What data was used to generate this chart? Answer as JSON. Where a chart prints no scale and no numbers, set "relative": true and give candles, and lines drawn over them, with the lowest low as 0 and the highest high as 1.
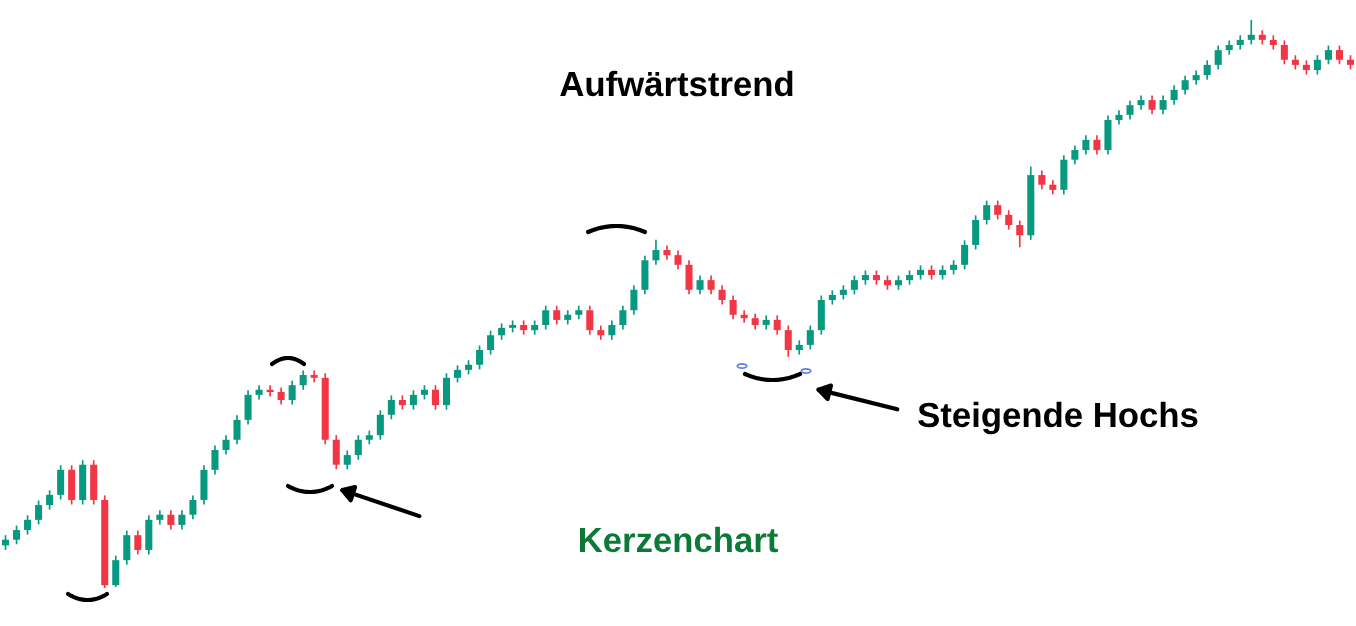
{
  "chart_data": {
    "type": "candlestick",
    "relative": true,
    "title": "Aufwärtstrend",
    "annotations": [
      "Steigende Hochs",
      "Kerzenchart"
    ],
    "categories": [
      null,
      null,
      null,
      null,
      null,
      null,
      null,
      null,
      null,
      null,
      null,
      null,
      null,
      null,
      null,
      null,
      null,
      null,
      null,
      null,
      null,
      null,
      null,
      null,
      null,
      null,
      null,
      null,
      null,
      null,
      null,
      null,
      null,
      null,
      null,
      null,
      null,
      null,
      null,
      null,
      null,
      null,
      null,
      null,
      null,
      null,
      null,
      null,
      null,
      null,
      null,
      null,
      null,
      null,
      null,
      null,
      null,
      null,
      null,
      null,
      null,
      null,
      null,
      null,
      null,
      null,
      null,
      null,
      null,
      null,
      null,
      null,
      null,
      null,
      null,
      null,
      null,
      null,
      null,
      null,
      null,
      null,
      null,
      null,
      null,
      null,
      null,
      null,
      null,
      null,
      null,
      null,
      null,
      null,
      null,
      null,
      null,
      null,
      null,
      null,
      null,
      null,
      null,
      null,
      null,
      null,
      null,
      null,
      null,
      null,
      null,
      null,
      null,
      null,
      null,
      null,
      null,
      null,
      null,
      null,
      null,
      null,
      null
    ],
    "ohlc": [
      [
        0.075,
        0.093,
        0.067,
        0.085
      ],
      [
        0.085,
        0.11,
        0.077,
        0.102
      ],
      [
        0.102,
        0.128,
        0.094,
        0.12
      ],
      [
        0.12,
        0.154,
        0.112,
        0.146
      ],
      [
        0.146,
        0.172,
        0.138,
        0.164
      ],
      [
        0.164,
        0.216,
        0.156,
        0.208
      ],
      [
        0.208,
        0.216,
        0.147,
        0.155
      ],
      [
        0.155,
        0.225,
        0.147,
        0.217
      ],
      [
        0.217,
        0.225,
        0.147,
        0.155
      ],
      [
        0.155,
        0.163,
        0,
        0.005
      ],
      [
        0.005,
        0.057,
        0.002,
        0.049
      ],
      [
        0.049,
        0.101,
        0.041,
        0.093
      ],
      [
        0.093,
        0.101,
        0.059,
        0.067
      ],
      [
        0.067,
        0.128,
        0.059,
        0.12
      ],
      [
        0.12,
        0.137,
        0.112,
        0.129
      ],
      [
        0.129,
        0.137,
        0.103,
        0.111
      ],
      [
        0.111,
        0.137,
        0.103,
        0.129
      ],
      [
        0.129,
        0.163,
        0.121,
        0.155
      ],
      [
        0.155,
        0.216,
        0.147,
        0.208
      ],
      [
        0.208,
        0.251,
        0.2,
        0.243
      ],
      [
        0.243,
        0.269,
        0.235,
        0.261
      ],
      [
        0.261,
        0.304,
        0.253,
        0.296
      ],
      [
        0.296,
        0.348,
        0.288,
        0.34
      ],
      [
        0.34,
        0.357,
        0.332,
        0.349
      ],
      [
        0.349,
        0.357,
        0.337,
        0.345
      ],
      [
        0.345,
        0.353,
        0.323,
        0.331
      ],
      [
        0.331,
        0.365,
        0.323,
        0.357
      ],
      [
        0.357,
        0.383,
        0.349,
        0.375
      ],
      [
        0.375,
        0.383,
        0.362,
        0.37
      ],
      [
        0.37,
        0.378,
        0.253,
        0.261
      ],
      [
        0.261,
        0.269,
        0.209,
        0.217
      ],
      [
        0.217,
        0.242,
        0.209,
        0.234
      ],
      [
        0.234,
        0.269,
        0.226,
        0.261
      ],
      [
        0.261,
        0.277,
        0.253,
        0.269
      ],
      [
        0.269,
        0.313,
        0.261,
        0.305
      ],
      [
        0.305,
        0.339,
        0.297,
        0.331
      ],
      [
        0.331,
        0.339,
        0.314,
        0.322
      ],
      [
        0.322,
        0.348,
        0.314,
        0.34
      ],
      [
        0.34,
        0.357,
        0.332,
        0.349
      ],
      [
        0.349,
        0.357,
        0.314,
        0.322
      ],
      [
        0.322,
        0.378,
        0.314,
        0.37
      ],
      [
        0.37,
        0.392,
        0.362,
        0.384
      ],
      [
        0.384,
        0.401,
        0.376,
        0.393
      ],
      [
        0.393,
        0.427,
        0.385,
        0.419
      ],
      [
        0.419,
        0.453,
        0.411,
        0.445
      ],
      [
        0.445,
        0.466,
        0.437,
        0.458
      ],
      [
        0.458,
        0.471,
        0.45,
        0.463
      ],
      [
        0.463,
        0.471,
        0.446,
        0.454
      ],
      [
        0.454,
        0.471,
        0.446,
        0.463
      ],
      [
        0.463,
        0.497,
        0.455,
        0.489
      ],
      [
        0.489,
        0.497,
        0.464,
        0.472
      ],
      [
        0.472,
        0.489,
        0.464,
        0.481
      ],
      [
        0.481,
        0.497,
        0.473,
        0.489
      ],
      [
        0.489,
        0.497,
        0.446,
        0.454
      ],
      [
        0.454,
        0.462,
        0.437,
        0.445
      ],
      [
        0.445,
        0.471,
        0.437,
        0.463
      ],
      [
        0.463,
        0.497,
        0.455,
        0.489
      ],
      [
        0.489,
        0.533,
        0.481,
        0.525
      ],
      [
        0.525,
        0.585,
        0.517,
        0.577
      ],
      [
        0.577,
        0.613,
        0.569,
        0.595
      ],
      [
        0.595,
        0.603,
        0.578,
        0.586
      ],
      [
        0.586,
        0.594,
        0.561,
        0.569
      ],
      [
        0.569,
        0.577,
        0.517,
        0.525
      ],
      [
        0.525,
        0.55,
        0.517,
        0.542
      ],
      [
        0.542,
        0.55,
        0.517,
        0.525
      ],
      [
        0.525,
        0.533,
        0.499,
        0.507
      ],
      [
        0.507,
        0.515,
        0.473,
        0.481
      ],
      [
        0.481,
        0.489,
        0.467,
        0.475
      ],
      [
        0.475,
        0.483,
        0.455,
        0.463
      ],
      [
        0.463,
        0.48,
        0.455,
        0.472
      ],
      [
        0.472,
        0.48,
        0.446,
        0.454
      ],
      [
        0.454,
        0.462,
        0.407,
        0.419
      ],
      [
        0.419,
        0.436,
        0.411,
        0.428
      ],
      [
        0.428,
        0.462,
        0.42,
        0.454
      ],
      [
        0.454,
        0.515,
        0.446,
        0.507
      ],
      [
        0.507,
        0.524,
        0.499,
        0.516
      ],
      [
        0.516,
        0.533,
        0.508,
        0.525
      ],
      [
        0.525,
        0.55,
        0.517,
        0.542
      ],
      [
        0.542,
        0.559,
        0.534,
        0.551
      ],
      [
        0.551,
        0.559,
        0.534,
        0.542
      ],
      [
        0.542,
        0.55,
        0.525,
        0.533
      ],
      [
        0.533,
        0.55,
        0.525,
        0.542
      ],
      [
        0.542,
        0.559,
        0.534,
        0.551
      ],
      [
        0.551,
        0.568,
        0.543,
        0.56
      ],
      [
        0.56,
        0.568,
        0.543,
        0.551
      ],
      [
        0.551,
        0.568,
        0.543,
        0.56
      ],
      [
        0.56,
        0.577,
        0.552,
        0.569
      ],
      [
        0.569,
        0.612,
        0.561,
        0.604
      ],
      [
        0.604,
        0.656,
        0.596,
        0.648
      ],
      [
        0.648,
        0.682,
        0.64,
        0.674
      ],
      [
        0.674,
        0.682,
        0.649,
        0.657
      ],
      [
        0.657,
        0.665,
        0.631,
        0.639
      ],
      [
        0.639,
        0.647,
        0.6,
        0.621
      ],
      [
        0.621,
        0.742,
        0.613,
        0.727
      ],
      [
        0.727,
        0.735,
        0.702,
        0.71
      ],
      [
        0.71,
        0.718,
        0.693,
        0.701
      ],
      [
        0.701,
        0.762,
        0.693,
        0.754
      ],
      [
        0.754,
        0.779,
        0.746,
        0.771
      ],
      [
        0.771,
        0.797,
        0.763,
        0.789
      ],
      [
        0.789,
        0.797,
        0.763,
        0.771
      ],
      [
        0.771,
        0.832,
        0.763,
        0.824
      ],
      [
        0.824,
        0.841,
        0.816,
        0.833
      ],
      [
        0.833,
        0.858,
        0.825,
        0.85
      ],
      [
        0.85,
        0.867,
        0.842,
        0.859
      ],
      [
        0.859,
        0.867,
        0.834,
        0.842
      ],
      [
        0.842,
        0.867,
        0.834,
        0.859
      ],
      [
        0.859,
        0.885,
        0.851,
        0.877
      ],
      [
        0.877,
        0.902,
        0.869,
        0.894
      ],
      [
        0.894,
        0.911,
        0.886,
        0.903
      ],
      [
        0.903,
        0.929,
        0.895,
        0.921
      ],
      [
        0.921,
        0.955,
        0.913,
        0.947
      ],
      [
        0.947,
        0.964,
        0.939,
        0.956
      ],
      [
        0.956,
        0.973,
        0.948,
        0.965
      ],
      [
        0.965,
        1.0,
        0.957,
        0.974
      ],
      [
        0.974,
        0.982,
        0.957,
        0.965
      ],
      [
        0.965,
        0.973,
        0.948,
        0.956
      ],
      [
        0.956,
        0.964,
        0.922,
        0.93
      ],
      [
        0.93,
        0.938,
        0.913,
        0.921
      ],
      [
        0.921,
        0.929,
        0.904,
        0.912
      ],
      [
        0.912,
        0.938,
        0.904,
        0.93
      ],
      [
        0.93,
        0.955,
        0.922,
        0.947
      ],
      [
        0.947,
        0.955,
        0.922,
        0.93
      ],
      [
        0.93,
        0.938,
        0.913,
        0.921
      ]
    ]
  }
}
